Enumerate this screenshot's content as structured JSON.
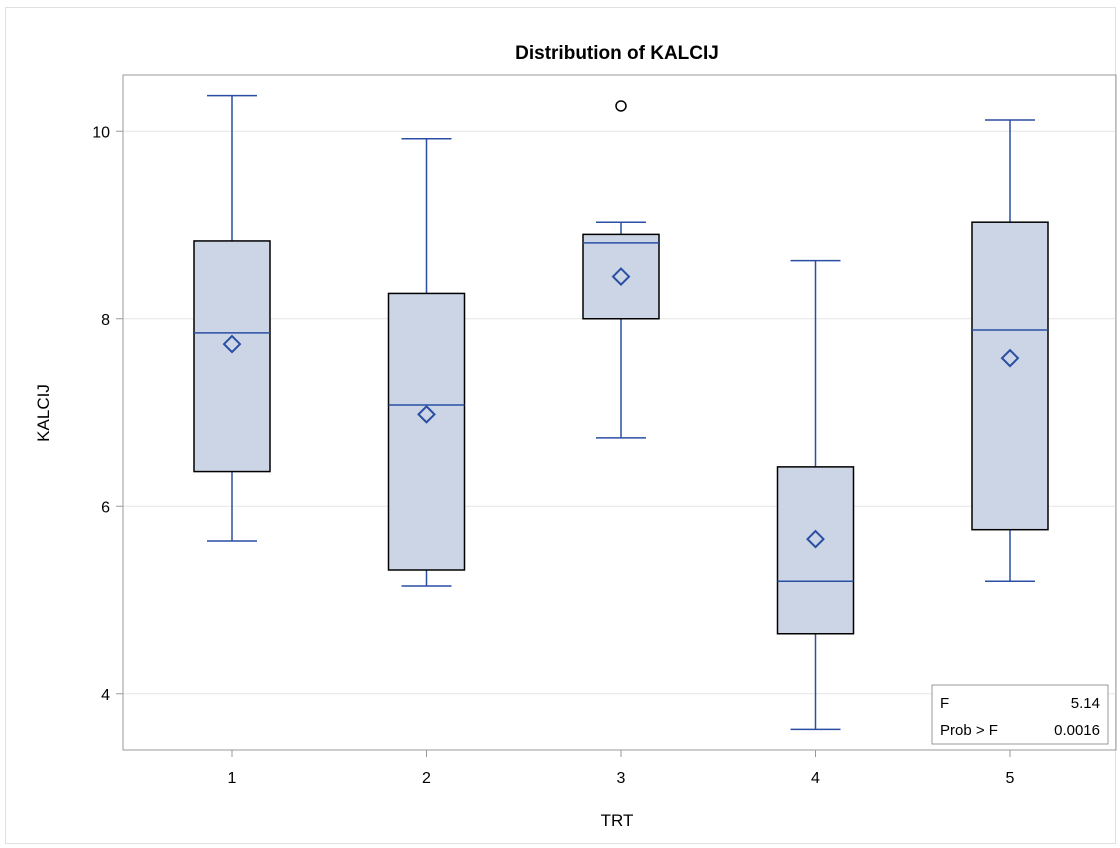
{
  "chart_data": {
    "type": "box",
    "title": "Distribution of KALCIJ",
    "xlabel": "TRT",
    "ylabel": "KALCIJ",
    "categories": [
      "1",
      "2",
      "3",
      "4",
      "5"
    ],
    "ylim": [
      3.4,
      10.6
    ],
    "yticks": [
      4,
      6,
      8,
      10
    ],
    "ytick_labels": [
      "4",
      "6",
      "8",
      "10"
    ],
    "grid": true,
    "boxes": [
      {
        "category": "1",
        "whisker_low": 5.63,
        "q1": 6.37,
        "median": 7.85,
        "q3": 8.83,
        "whisker_high": 10.38,
        "mean": 7.73,
        "outliers": []
      },
      {
        "category": "2",
        "whisker_low": 5.15,
        "q1": 5.32,
        "median": 7.08,
        "q3": 8.27,
        "whisker_high": 9.92,
        "mean": 6.98,
        "outliers": []
      },
      {
        "category": "3",
        "whisker_low": 6.73,
        "q1": 8.0,
        "median": 8.81,
        "q3": 8.9,
        "whisker_high": 9.03,
        "mean": 8.45,
        "outliers": [
          10.27
        ]
      },
      {
        "category": "4",
        "whisker_low": 3.62,
        "q1": 4.64,
        "median": 5.2,
        "q3": 6.42,
        "whisker_high": 8.62,
        "mean": 5.65,
        "outliers": []
      },
      {
        "category": "5",
        "whisker_low": 5.2,
        "q1": 5.75,
        "median": 7.88,
        "q3": 9.03,
        "whisker_high": 10.12,
        "mean": 7.58,
        "outliers": []
      }
    ],
    "inset": {
      "rows": [
        {
          "label": "F",
          "value": "5.14"
        },
        {
          "label": "Prob > F",
          "value": "0.0016"
        }
      ],
      "position": "bottom-right"
    },
    "colors": {
      "box_fill": "#cbd5e5",
      "box_edge": "#000000",
      "median": "#2a4ea3",
      "whisker": "#2a4ea3",
      "mean_marker": "#2a4ea3",
      "outlier": "#000000",
      "grid": "#e6e6e6",
      "axis": "#999999"
    }
  }
}
